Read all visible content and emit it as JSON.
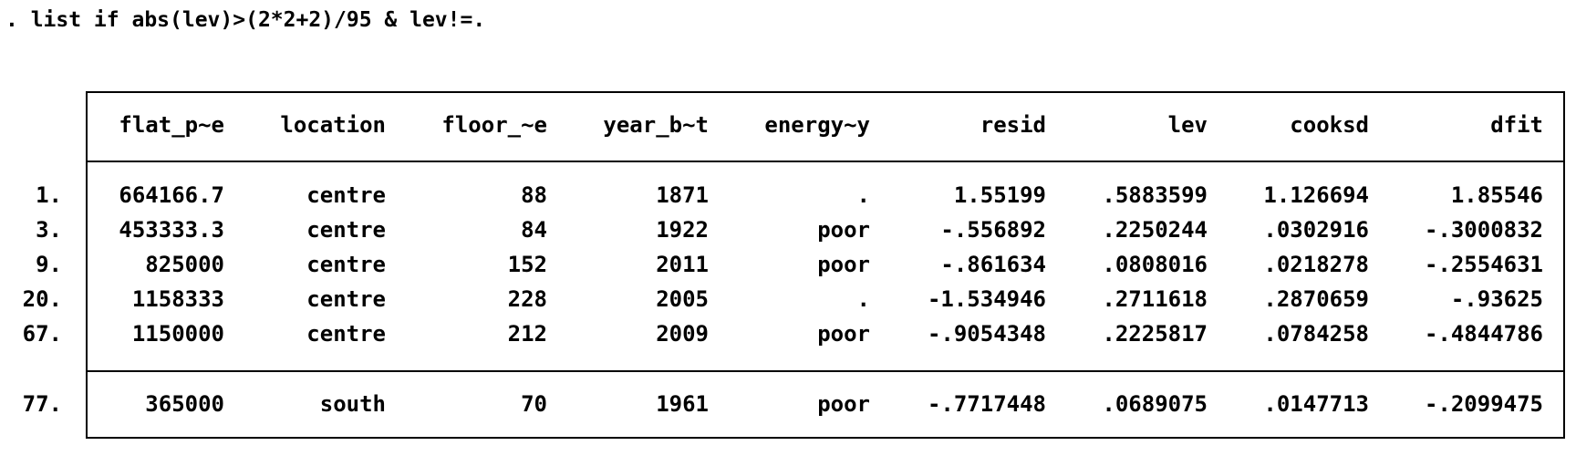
{
  "command": ". list if abs(lev)>(2*2+2)/95 & lev!=.",
  "table": {
    "headers": [
      "flat_p~e",
      "location",
      "floor_~e",
      "year_b~t",
      "energy~y",
      "resid",
      "lev",
      "cooksd",
      "dfit"
    ],
    "rows": [
      {
        "obs": "1.",
        "cells": [
          "664166.7",
          "centre",
          "88",
          "1871",
          ".",
          "1.55199",
          ".5883599",
          "1.126694",
          "1.85546"
        ]
      },
      {
        "obs": "3.",
        "cells": [
          "453333.3",
          "centre",
          "84",
          "1922",
          "poor",
          "-.556892",
          ".2250244",
          ".0302916",
          "-.3000832"
        ]
      },
      {
        "obs": "9.",
        "cells": [
          "825000",
          "centre",
          "152",
          "2011",
          "poor",
          "-.861634",
          ".0808016",
          ".0218278",
          "-.2554631"
        ]
      },
      {
        "obs": "20.",
        "cells": [
          "1158333",
          "centre",
          "228",
          "2005",
          ".",
          "-1.534946",
          ".2711618",
          ".2870659",
          "-.93625"
        ]
      },
      {
        "obs": "67.",
        "cells": [
          "1150000",
          "centre",
          "212",
          "2009",
          "poor",
          "-.9054348",
          ".2225817",
          ".0784258",
          "-.4844786"
        ]
      },
      {
        "obs": "77.",
        "cells": [
          "365000",
          "south",
          "70",
          "1961",
          "poor",
          "-.7717448",
          ".0689075",
          ".0147713",
          "-.2099475"
        ]
      }
    ]
  }
}
